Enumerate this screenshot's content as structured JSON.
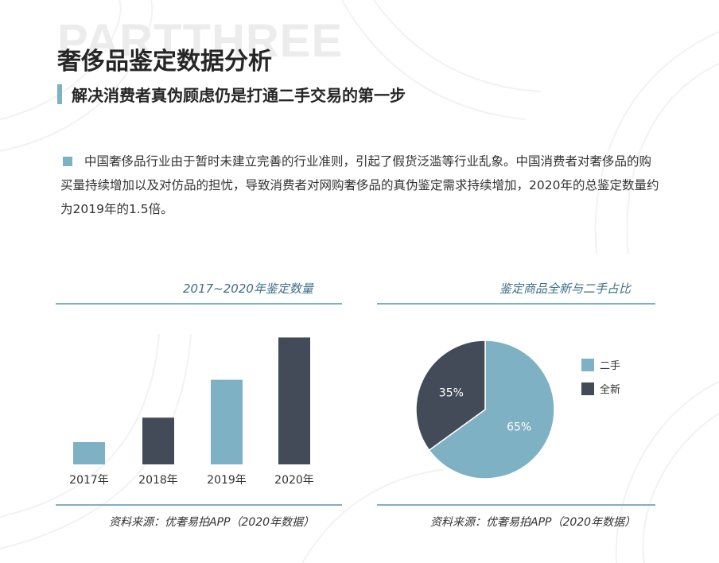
{
  "watermark": "PARTTHREE",
  "title": "奢侈品鉴定数据分析",
  "subtitle": "解决消费者真伪顾虑仍是打通二手交易的第一步",
  "paragraph": "中国奢侈品行业由于暂时未建立完善的行业准则，引起了假货泛滥等行业乱象。中国消费者对奢侈品的购买量持续增加以及对仿品的担忧，导致消费者对网购奢侈品的真伪鉴定需求持续增加，2020年的总鉴定数量约为2019年的1.5倍。",
  "colors": {
    "light": "#7fb1c4",
    "dark": "#434b58",
    "accent_text": "#3d6f84"
  },
  "chart_data": [
    {
      "type": "bar",
      "title": "2017~2020年鉴定数量",
      "categories": [
        "2017年",
        "2018年",
        "2019年",
        "2020年"
      ],
      "values": [
        1.0,
        2.1,
        3.8,
        5.7
      ],
      "bar_colors": [
        "#7fb1c4",
        "#434b58",
        "#7fb1c4",
        "#434b58"
      ],
      "ylim": [
        0,
        6
      ],
      "grid": false,
      "source": "资料来源：优奢易拍APP（2020年数据）"
    },
    {
      "type": "pie",
      "title": "鉴定商品全新与二手占比",
      "slices": [
        {
          "name": "二手",
          "value": 65,
          "label": "65%",
          "color": "#7fb1c4"
        },
        {
          "name": "全新",
          "value": 35,
          "label": "35%",
          "color": "#434b58"
        }
      ],
      "legend": "right",
      "source": "资料来源：优奢易拍APP（2020年数据）"
    }
  ]
}
